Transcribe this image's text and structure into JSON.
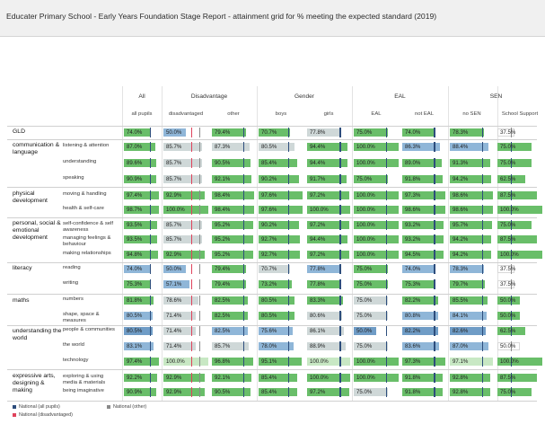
{
  "title": "Educater Primary School - Early Years Foundation Stage Report - attainment grid for % meeting the expected standard (2019)",
  "colors": {
    "above": "#69be69",
    "near": "#cfd8d8",
    "below": "#8fb6d8",
    "natAll": "#2d4d7c",
    "natDis": "#e0435c",
    "natOther": "#8a8a8a",
    "pale": "#c8e8c4"
  },
  "legend": [
    {
      "label": "National (all pupils)",
      "color": "natAll"
    },
    {
      "label": "National (other)",
      "color": "natOther"
    },
    {
      "label": "National (disadvantaged)",
      "color": "natDis"
    }
  ],
  "chart_data": {
    "type": "table",
    "groups": [
      {
        "name": "All",
        "cols": [
          "all pupils"
        ]
      },
      {
        "name": "Disadvantage",
        "cols": [
          "disadvantaged",
          "other"
        ]
      },
      {
        "name": "Gender",
        "cols": [
          "boys",
          "girls"
        ]
      },
      {
        "name": "EAL",
        "cols": [
          "EAL",
          "not EAL"
        ]
      },
      {
        "name": "SEN",
        "cols": [
          "no SEN",
          "School Support"
        ]
      }
    ],
    "columns": [
      "all pupils",
      "disadvantaged",
      "other",
      "boys",
      "girls",
      "EAL",
      "not EAL",
      "no SEN",
      "School Support"
    ],
    "sections": [
      {
        "category": "GLD",
        "rows": [
          {
            "label": "",
            "values": [
              "74.0%",
              "50.0%",
              "79.4%",
              "70.7%",
              "77.8%",
              "75.0%",
              "74.0%",
              "78.3%",
              "37.5%"
            ],
            "styles": [
              "G",
              "B",
              "G",
              "G",
              "N",
              "G",
              "G",
              "G",
              "W"
            ]
          }
        ]
      },
      {
        "category": "communication & language",
        "rows": [
          {
            "label": "listening & attention",
            "values": [
              "87.0%",
              "85.7%",
              "87.3%",
              "80.5%",
              "94.4%",
              "100.0%",
              "86.3%",
              "88.4%",
              "75.0%"
            ],
            "styles": [
              "G",
              "N",
              "N",
              "N",
              "G",
              "G",
              "B",
              "B",
              "G"
            ]
          },
          {
            "label": "understanding",
            "values": [
              "89.6%",
              "85.7%",
              "90.5%",
              "85.4%",
              "94.4%",
              "100.0%",
              "89.0%",
              "91.3%",
              "75.0%"
            ],
            "styles": [
              "G",
              "N",
              "G",
              "G",
              "G",
              "G",
              "G",
              "G",
              "G"
            ]
          },
          {
            "label": "speaking",
            "values": [
              "90.9%",
              "85.7%",
              "92.1%",
              "90.2%",
              "91.7%",
              "75.0%",
              "91.8%",
              "94.2%",
              "62.5%"
            ],
            "styles": [
              "G",
              "N",
              "G",
              "G",
              "G",
              "G",
              "G",
              "G",
              "G"
            ]
          }
        ]
      },
      {
        "category": "physical development",
        "rows": [
          {
            "label": "moving & handling",
            "values": [
              "97.4%",
              "92.9%",
              "98.4%",
              "97.6%",
              "97.2%",
              "100.0%",
              "97.3%",
              "98.6%",
              "87.5%"
            ],
            "styles": [
              "G",
              "G",
              "G",
              "G",
              "G",
              "G",
              "G",
              "G",
              "G"
            ]
          },
          {
            "label": "health & self-care",
            "values": [
              "98.7%",
              "100.0%",
              "98.4%",
              "97.6%",
              "100.0%",
              "100.0%",
              "98.6%",
              "98.6%",
              "100.0%"
            ],
            "styles": [
              "G",
              "G",
              "G",
              "G",
              "G",
              "G",
              "G",
              "G",
              "G"
            ]
          }
        ]
      },
      {
        "category": "personal, social & emotional development",
        "rows": [
          {
            "label": "self-confidence & self awareness",
            "values": [
              "93.5%",
              "85.7%",
              "95.2%",
              "90.2%",
              "97.2%",
              "100.0%",
              "93.2%",
              "95.7%",
              "75.0%"
            ],
            "styles": [
              "G",
              "N",
              "G",
              "G",
              "G",
              "G",
              "G",
              "G",
              "G"
            ]
          },
          {
            "label": "managing feelings & behaviour",
            "values": [
              "93.5%",
              "85.7%",
              "95.2%",
              "92.7%",
              "94.4%",
              "100.0%",
              "93.2%",
              "94.2%",
              "87.5%"
            ],
            "styles": [
              "G",
              "N",
              "G",
              "G",
              "G",
              "G",
              "G",
              "G",
              "G"
            ]
          },
          {
            "label": "making relationships",
            "values": [
              "94.8%",
              "92.9%",
              "95.2%",
              "92.7%",
              "97.2%",
              "100.0%",
              "94.5%",
              "94.2%",
              "100.0%"
            ],
            "styles": [
              "G",
              "G",
              "G",
              "G",
              "G",
              "G",
              "G",
              "G",
              "G"
            ]
          }
        ]
      },
      {
        "category": "literacy",
        "rows": [
          {
            "label": "reading",
            "values": [
              "74.0%",
              "50.0%",
              "79.4%",
              "70.7%",
              "77.8%",
              "75.0%",
              "74.0%",
              "78.3%",
              "37.5%"
            ],
            "styles": [
              "B",
              "B",
              "G",
              "N",
              "B",
              "G",
              "B",
              "B",
              "W"
            ]
          },
          {
            "label": "writing",
            "values": [
              "75.3%",
              "57.1%",
              "79.4%",
              "73.2%",
              "77.8%",
              "75.0%",
              "75.3%",
              "79.7%",
              "37.5%"
            ],
            "styles": [
              "G",
              "B",
              "G",
              "G",
              "G",
              "G",
              "G",
              "G",
              "W"
            ]
          }
        ]
      },
      {
        "category": "maths",
        "rows": [
          {
            "label": "numbers",
            "values": [
              "81.8%",
              "78.6%",
              "82.5%",
              "80.5%",
              "83.3%",
              "75.0%",
              "82.2%",
              "85.5%",
              "50.0%"
            ],
            "styles": [
              "G",
              "N",
              "G",
              "G",
              "G",
              "N",
              "G",
              "G",
              "G"
            ]
          },
          {
            "label": "shape, space & measures",
            "values": [
              "80.5%",
              "71.4%",
              "82.5%",
              "80.5%",
              "80.6%",
              "75.0%",
              "80.8%",
              "84.1%",
              "50.0%"
            ],
            "styles": [
              "B",
              "N",
              "G",
              "G",
              "N",
              "N",
              "B",
              "B",
              "G"
            ]
          }
        ]
      },
      {
        "category": "understanding the world",
        "rows": [
          {
            "label": "people & communities",
            "values": [
              "80.5%",
              "71.4%",
              "82.5%",
              "75.6%",
              "86.1%",
              "50.0%",
              "82.2%",
              "82.6%",
              "62.5%"
            ],
            "styles": [
              "D",
              "N",
              "B",
              "B",
              "N",
              "D",
              "D",
              "D",
              "G"
            ]
          },
          {
            "label": "the world",
            "values": [
              "83.1%",
              "71.4%",
              "85.7%",
              "78.0%",
              "88.9%",
              "75.0%",
              "83.6%",
              "87.0%",
              "50.0%"
            ],
            "styles": [
              "B",
              "N",
              "N",
              "B",
              "N",
              "N",
              "B",
              "B",
              "W"
            ]
          },
          {
            "label": "technology",
            "values": [
              "97.4%",
              "100.0%",
              "96.8%",
              "95.1%",
              "100.0%",
              "100.0%",
              "97.3%",
              "97.1%",
              "100.0%"
            ],
            "styles": [
              "G",
              "P",
              "G",
              "G",
              "P",
              "G",
              "G",
              "P",
              "G"
            ]
          }
        ]
      },
      {
        "category": "expressive arts, designing & making",
        "rows": [
          {
            "label": "exploring & using media & materials",
            "values": [
              "92.2%",
              "92.9%",
              "92.1%",
              "85.4%",
              "100.0%",
              "100.0%",
              "91.8%",
              "92.8%",
              "87.5%"
            ],
            "styles": [
              "G",
              "G",
              "G",
              "G",
              "G",
              "G",
              "G",
              "G",
              "G"
            ]
          },
          {
            "label": "being imaginative",
            "values": [
              "90.9%",
              "92.9%",
              "90.5%",
              "85.4%",
              "97.2%",
              "75.0%",
              "91.8%",
              "92.8%",
              "75.0%"
            ],
            "styles": [
              "G",
              "G",
              "G",
              "G",
              "G",
              "N",
              "G",
              "G",
              "G"
            ]
          }
        ]
      }
    ]
  }
}
